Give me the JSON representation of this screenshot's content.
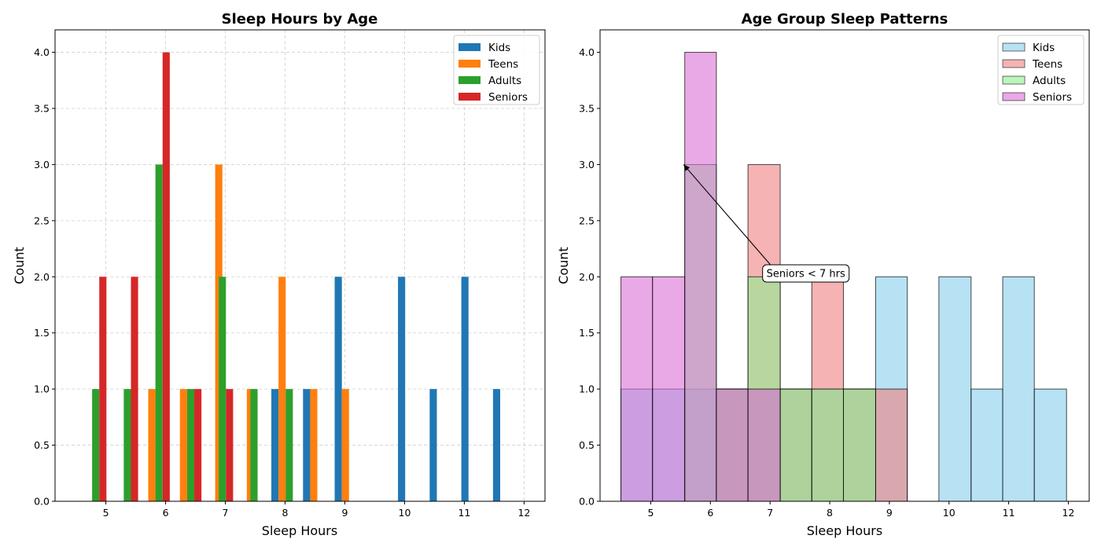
{
  "chart_data": [
    {
      "type": "bar",
      "title": "Sleep Hours by Age",
      "xlabel": "Sleep Hours",
      "ylabel": "Count",
      "xlim": [
        4.15,
        12.35
      ],
      "ylim": [
        0,
        4.2
      ],
      "xticks": [
        5,
        6,
        7,
        8,
        9,
        10,
        11,
        12
      ],
      "yticks": [
        0.0,
        0.5,
        1.0,
        1.5,
        2.0,
        2.5,
        3.0,
        3.5,
        4.0
      ],
      "grid": true,
      "legend_position": "top-right",
      "bar_width": 0.12,
      "series": [
        {
          "name": "Kids",
          "color": "#1f77b4",
          "points": [
            {
              "x": 7.83,
              "y": 1
            },
            {
              "x": 8.36,
              "y": 1
            },
            {
              "x": 8.89,
              "y": 2
            },
            {
              "x": 9.95,
              "y": 2
            },
            {
              "x": 10.48,
              "y": 1
            },
            {
              "x": 11.01,
              "y": 2
            },
            {
              "x": 11.54,
              "y": 1
            }
          ]
        },
        {
          "name": "Teens",
          "color": "#ff7f0e",
          "points": [
            {
              "x": 5.77,
              "y": 1
            },
            {
              "x": 6.3,
              "y": 1
            },
            {
              "x": 6.89,
              "y": 3
            },
            {
              "x": 7.42,
              "y": 1
            },
            {
              "x": 7.95,
              "y": 2
            },
            {
              "x": 8.48,
              "y": 1
            },
            {
              "x": 9.01,
              "y": 1
            }
          ]
        },
        {
          "name": "Adults",
          "color": "#2ca02c",
          "points": [
            {
              "x": 4.83,
              "y": 1
            },
            {
              "x": 5.36,
              "y": 1
            },
            {
              "x": 5.89,
              "y": 3
            },
            {
              "x": 6.42,
              "y": 1
            },
            {
              "x": 6.95,
              "y": 2
            },
            {
              "x": 7.48,
              "y": 1
            },
            {
              "x": 8.07,
              "y": 1
            }
          ]
        },
        {
          "name": "Seniors",
          "color": "#d62728",
          "points": [
            {
              "x": 4.95,
              "y": 2
            },
            {
              "x": 5.48,
              "y": 2
            },
            {
              "x": 6.01,
              "y": 4
            },
            {
              "x": 6.54,
              "y": 1
            },
            {
              "x": 7.07,
              "y": 1
            }
          ]
        }
      ]
    },
    {
      "type": "histogram",
      "title": "Age Group Sleep Patterns",
      "xlabel": "Sleep Hours",
      "ylabel": "Count",
      "xlim": [
        4.15,
        12.35
      ],
      "ylim": [
        0,
        4.2
      ],
      "xticks": [
        5,
        6,
        7,
        8,
        9,
        10,
        11,
        12
      ],
      "yticks": [
        0.0,
        0.5,
        1.0,
        1.5,
        2.0,
        2.5,
        3.0,
        3.5,
        4.0
      ],
      "grid": false,
      "legend_position": "top-right",
      "bin_edges": [
        4.5,
        5.03,
        5.57,
        6.1,
        6.63,
        7.17,
        7.7,
        8.23,
        8.77,
        9.3,
        9.83,
        10.37,
        10.9,
        11.43,
        11.97
      ],
      "series": [
        {
          "name": "Kids",
          "color": "#87ceeb",
          "counts": [
            1,
            1,
            1,
            1,
            1,
            1,
            1,
            1,
            2,
            0,
            2,
            1,
            2,
            1
          ]
        },
        {
          "name": "Teens",
          "color": "#f08080",
          "counts": [
            0,
            0,
            0,
            1,
            3,
            1,
            2,
            1,
            1,
            0,
            0,
            0,
            0,
            0
          ]
        },
        {
          "name": "Adults",
          "color": "#90ee90",
          "counts": [
            0,
            0,
            3,
            1,
            2,
            1,
            1,
            1,
            0,
            0,
            0,
            0,
            0,
            0
          ]
        },
        {
          "name": "Seniors",
          "color": "#da70d6",
          "counts": [
            2,
            2,
            4,
            1,
            1,
            0,
            0,
            0,
            0,
            0,
            0,
            0,
            0,
            0
          ]
        }
      ],
      "annotation": {
        "text": "Seniors < 7 hrs",
        "xy": [
          5.55,
          3.0
        ],
        "xytext": [
          7.6,
          2.03
        ]
      }
    }
  ]
}
